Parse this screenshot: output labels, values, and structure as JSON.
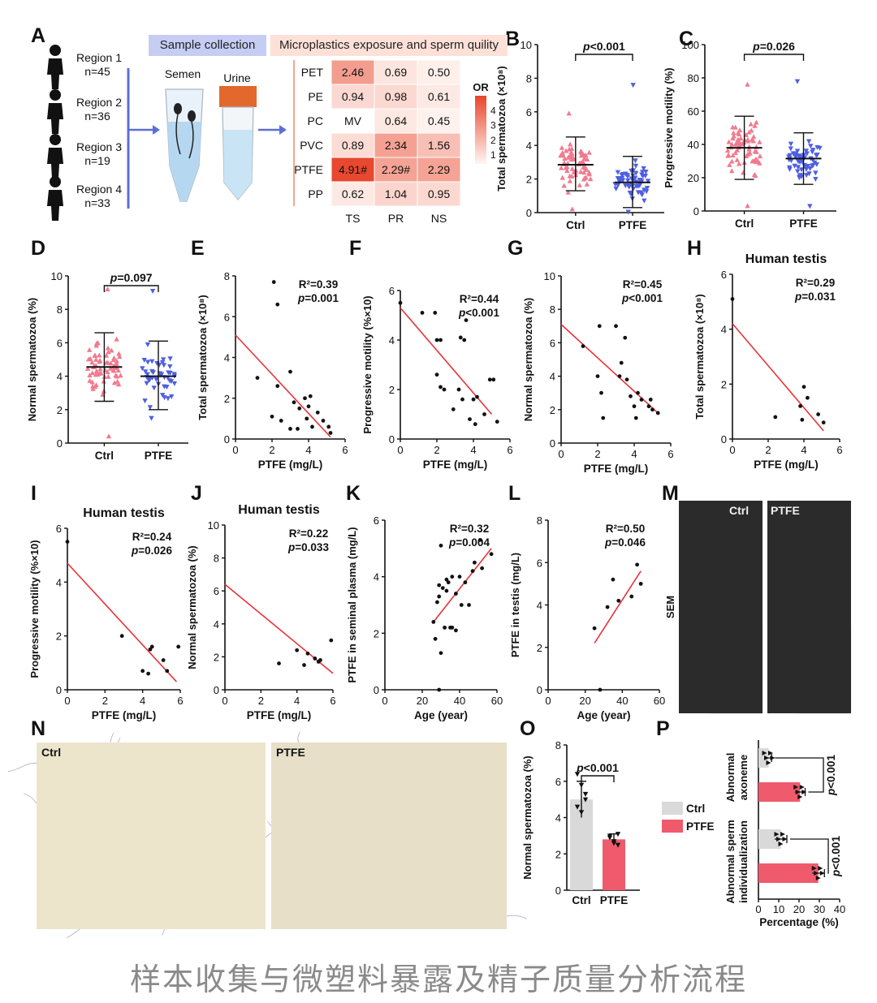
{
  "caption": "样本收集与微塑料暴露及精子质量分析流程",
  "panel_labels": [
    "A",
    "B",
    "C",
    "D",
    "E",
    "F",
    "G",
    "H",
    "I",
    "J",
    "K",
    "L",
    "M",
    "N",
    "O",
    "P"
  ],
  "panelA": {
    "header_left": "Sample collection",
    "header_right": "Microplastics exposure and sperm quility",
    "regions": [
      {
        "name": "Region 1",
        "n": "n=45"
      },
      {
        "name": "Region 2",
        "n": "n=36"
      },
      {
        "name": "Region 3",
        "n": "n=19"
      },
      {
        "name": "Region 4",
        "n": "n=33"
      }
    ],
    "semen_label": "Semen",
    "urine_label": "Urine",
    "colors": {
      "accent_blue": "#5b6fd6",
      "heat_low": "#fff6f2",
      "heat_high": "#e8452c"
    }
  },
  "panelM": {
    "ctrl_label": "Ctrl",
    "ptfe_label": "PTFE",
    "sem_label": "SEM"
  },
  "panelN": {
    "ctrl_label": "Ctrl",
    "ptfe_label": "PTFE"
  },
  "chart_data": [
    {
      "panel": "A",
      "type": "heatmap",
      "rows": [
        "PET",
        "PE",
        "PC",
        "PVC",
        "PTFE",
        "PP"
      ],
      "cols": [
        "TS",
        "PR",
        "NS"
      ],
      "values": [
        [
          2.46,
          0.69,
          0.5
        ],
        [
          0.94,
          0.98,
          0.61
        ],
        [
          null,
          0.64,
          0.45
        ],
        [
          0.89,
          2.34,
          1.56
        ],
        [
          4.91,
          2.29,
          2.29
        ],
        [
          0.62,
          1.04,
          0.95
        ]
      ],
      "labels": [
        [
          "2.46",
          "0.69",
          "0.50"
        ],
        [
          "0.94",
          "0.98",
          "0.61"
        ],
        [
          "MV",
          "0.64",
          "0.45"
        ],
        [
          "0.89",
          "2.34",
          "1.56"
        ],
        [
          "4.91#",
          "2.29#",
          "2.29"
        ],
        [
          "0.62",
          "1.04",
          "0.95"
        ]
      ],
      "colorbar": {
        "title": "OR",
        "ticks": [
          "1",
          "2",
          "3",
          "4"
        ],
        "range": [
          0.4,
          5
        ]
      }
    },
    {
      "panel": "B",
      "type": "scatter",
      "ylabel": "Total spermatozoa (×10⁸)",
      "ylim": [
        0,
        10
      ],
      "yticks": [
        0,
        2,
        4,
        6,
        8,
        10
      ],
      "categories": [
        "Ctrl",
        "PTFE"
      ],
      "annotation": "p<0.001",
      "groups": [
        {
          "name": "Ctrl",
          "marker": "triangle-up",
          "color": "#f07b8f",
          "mean": 2.85,
          "sd_low": 1.3,
          "sd_high": 4.5,
          "n": 70,
          "min": 0.2,
          "max": 5.9
        },
        {
          "name": "PTFE",
          "marker": "triangle-down",
          "color": "#4f5fe0",
          "mean": 1.8,
          "sd_low": 0.3,
          "sd_high": 3.35,
          "n": 62,
          "min": 0.05,
          "max": 7.6
        }
      ]
    },
    {
      "panel": "C",
      "type": "scatter",
      "ylabel": "Progressive motility (%)",
      "ylim": [
        0,
        100
      ],
      "yticks": [
        0,
        20,
        40,
        60,
        80,
        100
      ],
      "categories": [
        "Ctrl",
        "PTFE"
      ],
      "annotation": "p=0.026",
      "groups": [
        {
          "name": "Ctrl",
          "marker": "triangle-up",
          "color": "#f07b8f",
          "mean": 38,
          "sd_low": 19,
          "sd_high": 57,
          "n": 70,
          "min": 3,
          "max": 76
        },
        {
          "name": "PTFE",
          "marker": "triangle-down",
          "color": "#4f5fe0",
          "mean": 31.5,
          "sd_low": 16,
          "sd_high": 47,
          "n": 62,
          "min": 3,
          "max": 78
        }
      ]
    },
    {
      "panel": "D",
      "type": "scatter",
      "ylabel": "Normal spermatozoa (%)",
      "ylim": [
        0,
        10
      ],
      "yticks": [
        0,
        2,
        4,
        6,
        8,
        10
      ],
      "categories": [
        "Ctrl",
        "PTFE"
      ],
      "annotation": "p=0.097",
      "groups": [
        {
          "name": "Ctrl",
          "marker": "triangle-up",
          "color": "#f07b8f",
          "mean": 4.55,
          "sd_low": 2.5,
          "sd_high": 6.6,
          "n": 68,
          "min": 0.4,
          "max": 9.2
        },
        {
          "name": "PTFE",
          "marker": "triangle-down",
          "color": "#4f5fe0",
          "mean": 4.0,
          "sd_low": 2.0,
          "sd_high": 6.1,
          "n": 48,
          "min": 1.5,
          "max": 9.1
        }
      ]
    },
    {
      "panel": "E",
      "type": "scatter",
      "xlabel": "PTFE (mg/L)",
      "ylabel": "Total spermatozoa (×10⁸)",
      "xlim": [
        0,
        6
      ],
      "ylim": [
        0,
        8
      ],
      "xticks": [
        0,
        2,
        4,
        6
      ],
      "yticks": [
        0,
        2,
        4,
        6,
        8
      ],
      "stats": [
        "R²=0.39",
        "p=0.001"
      ],
      "fit": [
        [
          0,
          5.1
        ],
        [
          5.2,
          0.1
        ]
      ],
      "points": [
        [
          2.1,
          7.7
        ],
        [
          2.3,
          6.6
        ],
        [
          1.2,
          3.0
        ],
        [
          3.0,
          3.3
        ],
        [
          2.3,
          2.6
        ],
        [
          2.0,
          1.1
        ],
        [
          2.5,
          0.9
        ],
        [
          3.2,
          1.8
        ],
        [
          3.5,
          1.5
        ],
        [
          3.8,
          2.0
        ],
        [
          4.1,
          2.1
        ],
        [
          3.9,
          1.0
        ],
        [
          4.2,
          0.6
        ],
        [
          3.4,
          0.5
        ],
        [
          4.5,
          1.3
        ],
        [
          4.8,
          0.9
        ],
        [
          5.1,
          0.6
        ],
        [
          5.2,
          0.3
        ],
        [
          3.0,
          0.5
        ],
        [
          4.0,
          1.6
        ]
      ]
    },
    {
      "panel": "F",
      "type": "scatter",
      "xlabel": "PTFE (mg/L)",
      "ylabel": "Progressive motility (%×10)",
      "xlim": [
        0,
        6
      ],
      "ylim": [
        0,
        6
      ],
      "xticks": [
        0,
        2,
        4,
        6
      ],
      "yticks": [
        0,
        2,
        4,
        6
      ],
      "stats": [
        "R²=0.44",
        "p<0.001"
      ],
      "fit": [
        [
          0,
          5.3
        ],
        [
          5.0,
          1.0
        ]
      ],
      "points": [
        [
          0,
          5.5
        ],
        [
          1.2,
          5.1
        ],
        [
          1.9,
          5.1
        ],
        [
          2.0,
          4.0
        ],
        [
          2.2,
          4.0
        ],
        [
          3.3,
          4.1
        ],
        [
          3.5,
          4.0
        ],
        [
          3.6,
          4.8
        ],
        [
          2.0,
          2.6
        ],
        [
          2.2,
          2.1
        ],
        [
          2.4,
          2.0
        ],
        [
          2.9,
          1.2
        ],
        [
          3.2,
          2.0
        ],
        [
          3.4,
          1.6
        ],
        [
          3.8,
          0.8
        ],
        [
          4.0,
          1.6
        ],
        [
          4.1,
          0.6
        ],
        [
          4.2,
          1.7
        ],
        [
          4.6,
          1.0
        ],
        [
          4.9,
          2.4
        ],
        [
          5.1,
          2.4
        ],
        [
          5.3,
          0.7
        ]
      ]
    },
    {
      "panel": "G",
      "type": "scatter",
      "xlabel": "PTFE (mg/L)",
      "ylabel": "Normal spermatozoa (%)",
      "xlim": [
        0,
        6
      ],
      "ylim": [
        0,
        10
      ],
      "xticks": [
        0,
        2,
        4,
        6
      ],
      "yticks": [
        0,
        2,
        4,
        6,
        8,
        10
      ],
      "stats": [
        "R²=0.45",
        "p<0.001"
      ],
      "fit": [
        [
          0,
          7.1
        ],
        [
          5.3,
          1.8
        ]
      ],
      "points": [
        [
          1.2,
          5.8
        ],
        [
          2.0,
          4.0
        ],
        [
          2.2,
          3.0
        ],
        [
          2.3,
          1.5
        ],
        [
          2.1,
          7.0
        ],
        [
          3.0,
          7.0
        ],
        [
          3.3,
          4.8
        ],
        [
          3.5,
          6.3
        ],
        [
          3.2,
          4.0
        ],
        [
          3.6,
          3.8
        ],
        [
          3.8,
          2.8
        ],
        [
          4.0,
          2.2
        ],
        [
          4.2,
          3.0
        ],
        [
          4.4,
          2.6
        ],
        [
          4.8,
          2.2
        ],
        [
          5.0,
          2.0
        ],
        [
          5.3,
          1.8
        ],
        [
          4.9,
          2.6
        ],
        [
          4.1,
          1.5
        ]
      ]
    },
    {
      "panel": "H",
      "type": "scatter",
      "title": "Human testis",
      "xlabel": "PTFE (mg/L)",
      "ylabel": "Total spermatozoa (×10⁸)",
      "xlim": [
        0,
        6
      ],
      "ylim": [
        0,
        6
      ],
      "xticks": [
        0,
        2,
        4,
        6
      ],
      "yticks": [
        0,
        2,
        4,
        6
      ],
      "stats": [
        "R²=0.29",
        "p=0.031"
      ],
      "fit": [
        [
          0,
          4.2
        ],
        [
          5.1,
          0.3
        ]
      ],
      "points": [
        [
          0,
          5.1
        ],
        [
          2.4,
          0.8
        ],
        [
          3.8,
          1.2
        ],
        [
          4.0,
          1.9
        ],
        [
          4.2,
          1.5
        ],
        [
          3.9,
          0.7
        ],
        [
          4.8,
          0.9
        ],
        [
          5.1,
          0.6
        ]
      ]
    },
    {
      "panel": "I",
      "type": "scatter",
      "title": "Human testis",
      "xlabel": "PTFE (mg/L)",
      "ylabel": "Progressive motility (%×10)",
      "xlim": [
        0,
        6
      ],
      "ylim": [
        0,
        6
      ],
      "xticks": [
        0,
        2,
        4,
        6
      ],
      "yticks": [
        0,
        2,
        4,
        6
      ],
      "stats": [
        "R²=0.24",
        "p=0.026"
      ],
      "fit": [
        [
          0,
          4.7
        ],
        [
          5.8,
          0.3
        ]
      ],
      "points": [
        [
          0,
          5.5
        ],
        [
          2.9,
          2.0
        ],
        [
          4.0,
          0.7
        ],
        [
          4.3,
          0.6
        ],
        [
          4.4,
          1.5
        ],
        [
          4.5,
          1.6
        ],
        [
          5.1,
          1.1
        ],
        [
          5.3,
          0.7
        ],
        [
          5.9,
          1.6
        ]
      ]
    },
    {
      "panel": "J",
      "type": "scatter",
      "title": "Human testis",
      "xlabel": "PTFE (mg/L)",
      "ylabel": "Normal spermatozoa (%)",
      "xlim": [
        0,
        6
      ],
      "ylim": [
        0,
        10
      ],
      "xticks": [
        0,
        2,
        4,
        6
      ],
      "yticks": [
        0,
        2,
        4,
        6,
        8,
        10
      ],
      "stats": [
        "R²=0.22",
        "p=0.033"
      ],
      "fit": [
        [
          0,
          6.4
        ],
        [
          6,
          1.0
        ]
      ],
      "points": [
        [
          3.0,
          1.6
        ],
        [
          4.0,
          2.4
        ],
        [
          4.4,
          1.5
        ],
        [
          4.6,
          2.2
        ],
        [
          5.0,
          1.9
        ],
        [
          5.2,
          1.7
        ],
        [
          5.3,
          1.8
        ],
        [
          5.9,
          3.0
        ]
      ]
    },
    {
      "panel": "K",
      "type": "scatter",
      "xlabel": "Age (year)",
      "ylabel": "PTFE in seminal plasma (mg/L)",
      "xlim": [
        0,
        60
      ],
      "ylim": [
        0,
        6
      ],
      "xticks": [
        0,
        20,
        40,
        60
      ],
      "yticks": [
        0,
        2,
        4,
        6
      ],
      "stats": [
        "R²=0.32",
        "p=0.004"
      ],
      "fit": [
        [
          26,
          2.4
        ],
        [
          57,
          5.0
        ]
      ],
      "points": [
        [
          26,
          2.4
        ],
        [
          27,
          1.8
        ],
        [
          28,
          3.1
        ],
        [
          29,
          3.3
        ],
        [
          29,
          3.7
        ],
        [
          30,
          1.3
        ],
        [
          30,
          5.1
        ],
        [
          31,
          3.6
        ],
        [
          32,
          2.2
        ],
        [
          33,
          3.5
        ],
        [
          33,
          3.9
        ],
        [
          34,
          3.8
        ],
        [
          35,
          2.2
        ],
        [
          36,
          4.0
        ],
        [
          36,
          2.2
        ],
        [
          38,
          3.4
        ],
        [
          38,
          2.1
        ],
        [
          40,
          4.0
        ],
        [
          41,
          3.0
        ],
        [
          43,
          3.8
        ],
        [
          45,
          3.0
        ],
        [
          47,
          4.2
        ],
        [
          48,
          4.5
        ],
        [
          51,
          5.3
        ],
        [
          52,
          4.3
        ],
        [
          57,
          4.8
        ],
        [
          29,
          0
        ]
      ]
    },
    {
      "panel": "L",
      "type": "scatter",
      "xlabel": "Age (year)",
      "ylabel": "PTFE in testis (mg/L)",
      "xlim": [
        0,
        60
      ],
      "ylim": [
        0,
        8
      ],
      "xticks": [
        0,
        20,
        40,
        60
      ],
      "yticks": [
        0,
        2,
        4,
        6,
        8
      ],
      "stats": [
        "R²=0.50",
        "p=0.046"
      ],
      "fit": [
        [
          25,
          2.2
        ],
        [
          50,
          5.6
        ]
      ],
      "points": [
        [
          25,
          2.9
        ],
        [
          28,
          0
        ],
        [
          32,
          3.9
        ],
        [
          35,
          5.2
        ],
        [
          38,
          4.2
        ],
        [
          45,
          4.4
        ],
        [
          48,
          5.9
        ],
        [
          50,
          5.0
        ]
      ]
    },
    {
      "panel": "O",
      "type": "bar",
      "ylabel": "Normal spermatozoa (%)",
      "ylim": [
        0,
        8
      ],
      "yticks": [
        0,
        2,
        4,
        6,
        8
      ],
      "categories": [
        "Ctrl",
        "PTFE"
      ],
      "values": [
        5.0,
        2.8
      ],
      "errors": [
        1.0,
        0.3
      ],
      "colors": [
        "#d9d9d9",
        "#ef5a6c"
      ],
      "annotation": "p<0.001",
      "points": [
        [
          6.4,
          5.8,
          5.0,
          4.6,
          4.3,
          5.3
        ],
        [
          3.0,
          2.6,
          2.5,
          2.9,
          2.7,
          3.1
        ]
      ]
    },
    {
      "panel": "P",
      "type": "bar",
      "orientation": "horizontal",
      "xlabel": "Percentage (%)",
      "xlim": [
        0,
        40
      ],
      "xticks": [
        0,
        10,
        20,
        30,
        40
      ],
      "groups": [
        "Abnormal axoneme",
        "Abnormal sperm individualization"
      ],
      "series": [
        {
          "name": "Ctrl",
          "color": "#d9d9d9",
          "values": [
            5,
            11
          ],
          "errors": [
            1.5,
            3
          ]
        },
        {
          "name": "PTFE",
          "color": "#ef5a6c",
          "values": [
            20.5,
            29.5
          ],
          "errors": [
            2.5,
            3
          ]
        }
      ],
      "annotations": [
        "p<0.001",
        "p<0.001"
      ]
    }
  ]
}
